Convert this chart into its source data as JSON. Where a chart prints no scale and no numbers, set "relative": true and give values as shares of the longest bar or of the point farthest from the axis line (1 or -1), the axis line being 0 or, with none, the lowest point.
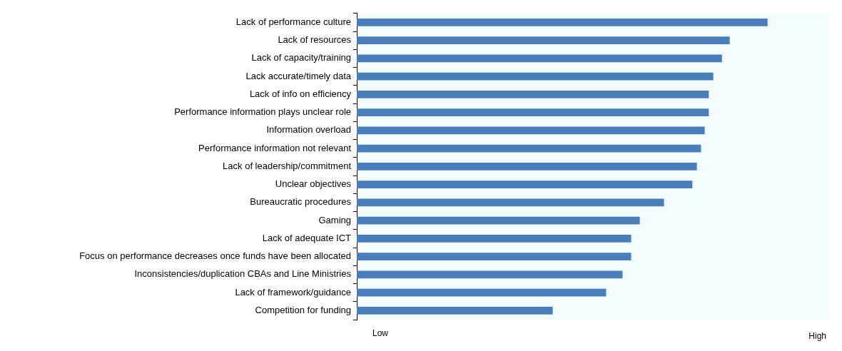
{
  "chart_data": {
    "type": "bar",
    "orientation": "horizontal",
    "relative": true,
    "color": "#4a7ebb",
    "categories": [
      "Lack of performance culture",
      "Lack of resources",
      "Lack of capacity/training",
      "Lack accurate/timely data",
      "Lack of info on efficiency",
      "Performance information plays unclear role",
      "Information overload",
      "Performance information not relevant",
      "Lack of leadership/commitment",
      "Unclear objectives",
      "Bureaucratic procedures",
      "Gaming",
      "Lack of adequate ICT",
      "Focus on performance decreases once funds have been allocated",
      "Inconsistencies/duplication CBAs and Line Ministries",
      "Lack of framework/guidance",
      "Competition for funding"
    ],
    "values": [
      1,
      0.908,
      0.889,
      0.868,
      0.857,
      0.857,
      0.847,
      0.838,
      0.828,
      0.817,
      0.748,
      0.689,
      0.668,
      0.668,
      0.647,
      0.607,
      0.477
    ],
    "annotations": [
      "Low",
      "High"
    ],
    "grid": false,
    "legend": false
  }
}
